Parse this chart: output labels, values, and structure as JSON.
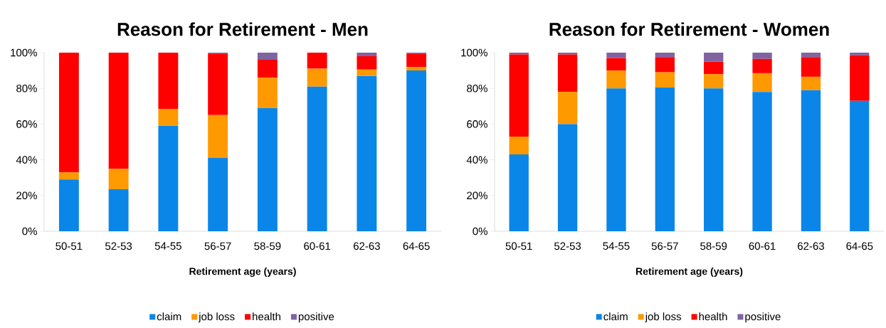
{
  "chart_data": [
    {
      "type": "bar",
      "title": "Reason for Retirement - Men",
      "xlabel": "Retirement age (years)",
      "categories": [
        "50-51",
        "52-53",
        "54-55",
        "56-57",
        "58-59",
        "60-61",
        "62-63",
        "64-65"
      ],
      "stacked": true,
      "legend": "bottom",
      "grid": false,
      "ylim": [
        0,
        100
      ],
      "yticks": [
        {
          "value": 0,
          "label": "0%"
        },
        {
          "value": 20,
          "label": "20%"
        },
        {
          "value": 40,
          "label": "40%"
        },
        {
          "value": 60,
          "label": "60%"
        },
        {
          "value": 80,
          "label": "80%"
        },
        {
          "value": 100,
          "label": "100%"
        }
      ],
      "series": [
        {
          "name": "claim",
          "color": "#0a86e8",
          "values": [
            29,
            23.5,
            59,
            41,
            69,
            81,
            87,
            90
          ]
        },
        {
          "name": "job loss",
          "color": "#ff9900",
          "values": [
            4,
            11.5,
            9.5,
            24,
            17,
            10,
            3.5,
            2
          ]
        },
        {
          "name": "health",
          "color": "#ff0000",
          "values": [
            67,
            65,
            31.5,
            34.5,
            10,
            9,
            7.5,
            7.5
          ]
        },
        {
          "name": "positive",
          "color": "#8064a2",
          "values": [
            0,
            0,
            0,
            0.5,
            4,
            0,
            2,
            0.5
          ]
        }
      ]
    },
    {
      "type": "bar",
      "title": "Reason for Retirement - Women",
      "xlabel": "Retirement age (years)",
      "categories": [
        "50-51",
        "52-53",
        "54-55",
        "56-57",
        "58-59",
        "60-61",
        "62-63",
        "64-65"
      ],
      "stacked": true,
      "legend": "bottom",
      "grid": false,
      "ylim": [
        0,
        100
      ],
      "yticks": [
        {
          "value": 0,
          "label": "0%"
        },
        {
          "value": 20,
          "label": "20%"
        },
        {
          "value": 40,
          "label": "40%"
        },
        {
          "value": 60,
          "label": "60%"
        },
        {
          "value": 80,
          "label": "80%"
        },
        {
          "value": 100,
          "label": "100%"
        }
      ],
      "series": [
        {
          "name": "claim",
          "color": "#0a86e8",
          "values": [
            43,
            60,
            80,
            80.5,
            80,
            78,
            79,
            73
          ]
        },
        {
          "name": "job loss",
          "color": "#ff9900",
          "values": [
            10,
            18,
            10,
            8.5,
            8,
            10.5,
            7.5,
            0
          ]
        },
        {
          "name": "health",
          "color": "#ff0000",
          "values": [
            46,
            21,
            7,
            8.5,
            7,
            8,
            11,
            25.5
          ]
        },
        {
          "name": "positive",
          "color": "#8064a2",
          "values": [
            1,
            1,
            3,
            2.5,
            5,
            3.5,
            2.5,
            1.5
          ]
        }
      ]
    }
  ]
}
